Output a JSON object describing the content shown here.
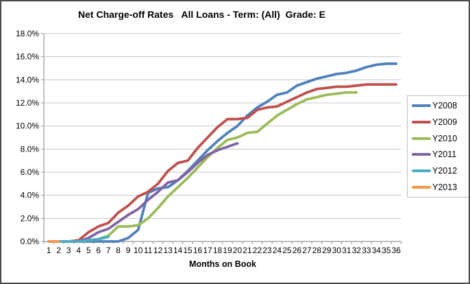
{
  "chart_data": {
    "type": "line",
    "title": "Net Charge-off Rates   All Loans - Term: (All)  Grade: E",
    "xlabel": "Months on Book",
    "ylabel": "",
    "x": [
      1,
      2,
      3,
      4,
      5,
      6,
      7,
      8,
      9,
      10,
      11,
      12,
      13,
      14,
      15,
      16,
      17,
      18,
      19,
      20,
      21,
      22,
      23,
      24,
      25,
      26,
      27,
      28,
      29,
      30,
      31,
      32,
      33,
      34,
      35,
      36
    ],
    "ylim": [
      0,
      18
    ],
    "ytick_step": 2,
    "ytick_labels": [
      "0.0%",
      "2.0%",
      "4.0%",
      "6.0%",
      "8.0%",
      "10.0%",
      "12.0%",
      "14.0%",
      "16.0%",
      "18.0%"
    ],
    "grid": true,
    "legend_position": "right",
    "series": [
      {
        "name": "Y2008",
        "color": "#4F81BD",
        "values": [
          0.0,
          0.0,
          0.0,
          0.0,
          0.0,
          0.0,
          0.0,
          0.0,
          0.3,
          1.0,
          4.2,
          4.6,
          4.7,
          5.3,
          6.1,
          7.0,
          7.9,
          8.7,
          9.4,
          10.0,
          10.9,
          11.6,
          12.1,
          12.7,
          12.9,
          13.5,
          13.8,
          14.1,
          14.3,
          14.5,
          14.6,
          14.8,
          15.1,
          15.3,
          15.4,
          15.4
        ]
      },
      {
        "name": "Y2009",
        "color": "#C0504D",
        "values": [
          0.0,
          0.0,
          0.0,
          0.1,
          0.8,
          1.3,
          1.6,
          2.5,
          3.1,
          3.9,
          4.3,
          5.0,
          6.1,
          6.8,
          7.0,
          8.1,
          9.0,
          9.9,
          10.6,
          10.6,
          10.7,
          11.4,
          11.6,
          11.7,
          12.1,
          12.5,
          12.9,
          13.2,
          13.3,
          13.4,
          13.4,
          13.5,
          13.6,
          13.6,
          13.6,
          13.6
        ]
      },
      {
        "name": "Y2010",
        "color": "#9BBB59",
        "values": [
          0.0,
          0.0,
          0.0,
          0.0,
          0.1,
          0.2,
          0.5,
          1.3,
          1.3,
          1.4,
          2.0,
          2.9,
          3.9,
          4.7,
          5.5,
          6.4,
          7.3,
          8.1,
          8.8,
          9.0,
          9.4,
          9.5,
          10.2,
          10.9,
          11.4,
          11.9,
          12.3,
          12.5,
          12.7,
          12.8,
          12.9,
          12.9
        ]
      },
      {
        "name": "Y2011",
        "color": "#8064A2",
        "values": [
          0.0,
          0.0,
          0.0,
          0.0,
          0.3,
          0.8,
          1.1,
          1.7,
          2.3,
          2.8,
          3.6,
          4.3,
          5.1,
          5.3,
          6.0,
          6.8,
          7.5,
          7.9,
          8.2,
          8.5
        ]
      },
      {
        "name": "Y2012",
        "color": "#4BACC6",
        "values": [
          0.0,
          0.0,
          0.0,
          0.0,
          0.1,
          0.2,
          0.4
        ]
      },
      {
        "name": "Y2013",
        "color": "#F79646",
        "values": [
          0.0,
          0.0
        ]
      }
    ]
  },
  "colors": {
    "gridline": "#C6C6C6",
    "axis": "#969696",
    "text": "#000000",
    "frame_border": "#4A4A4A",
    "legend_border": "#BFBFBF",
    "background": "#FFFFFF"
  }
}
